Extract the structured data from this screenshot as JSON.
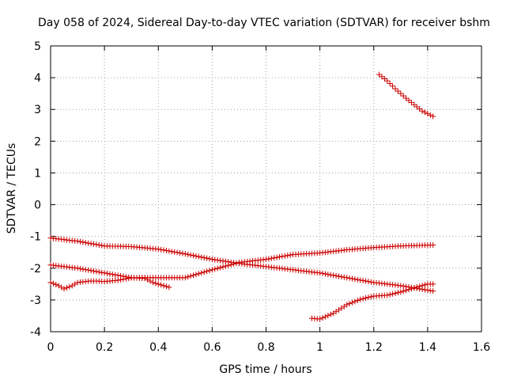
{
  "chart_data": {
    "type": "scatter",
    "title": "Day 058 of 2024, Sidereal Day-to-day VTEC variation (SDTVAR) for receiver bshm",
    "xlabel": "GPS time / hours",
    "ylabel": "SDTVAR / TECUs",
    "xlim": [
      0,
      1.6
    ],
    "ylim": [
      -4,
      5
    ],
    "xticks": [
      0,
      0.2,
      0.4,
      0.6,
      0.8,
      1,
      1.2,
      1.4,
      1.6
    ],
    "xtick_labels": [
      "0",
      "0.2",
      "0.4",
      "0.6",
      "0.8",
      "1",
      "1.2",
      "1.4",
      "1.6"
    ],
    "yticks": [
      -4,
      -3,
      -2,
      -1,
      0,
      1,
      2,
      3,
      4,
      5
    ],
    "ytick_labels": [
      "-4",
      "-3",
      "-2",
      "-1",
      "0",
      "1",
      "2",
      "3",
      "4",
      "5"
    ],
    "grid": true,
    "marker": "plus",
    "color": "#cc0000",
    "series": [
      {
        "x": [
          0,
          0.1,
          0.2,
          0.3,
          0.4,
          0.5,
          0.6,
          0.7,
          0.8,
          0.9,
          1.0,
          1.1,
          1.2,
          1.3,
          1.42
        ],
        "y": [
          -1.05,
          -1.15,
          -1.3,
          -1.32,
          -1.4,
          -1.55,
          -1.72,
          -1.85,
          -1.95,
          -2.05,
          -2.15,
          -2.3,
          -2.45,
          -2.55,
          -2.72
        ]
      },
      {
        "x": [
          0,
          0.1,
          0.2,
          0.3,
          0.4,
          0.5,
          0.6,
          0.7,
          0.8,
          0.9,
          1.0,
          1.1,
          1.2,
          1.3,
          1.42
        ],
        "y": [
          -1.9,
          -2.0,
          -2.15,
          -2.3,
          -2.3,
          -2.3,
          -2.05,
          -1.82,
          -1.72,
          -1.57,
          -1.52,
          -1.42,
          -1.35,
          -1.3,
          -1.27
        ]
      },
      {
        "x": [
          0,
          0.03,
          0.05,
          0.08,
          0.1,
          0.15,
          0.2,
          0.25,
          0.3,
          0.35,
          0.38,
          0.42,
          0.44
        ],
        "y": [
          -2.45,
          -2.55,
          -2.65,
          -2.55,
          -2.45,
          -2.4,
          -2.42,
          -2.38,
          -2.3,
          -2.32,
          -2.45,
          -2.55,
          -2.6
        ]
      },
      {
        "x": [
          0.97,
          1.0,
          1.05,
          1.1,
          1.15,
          1.2,
          1.25,
          1.3,
          1.35,
          1.4,
          1.42
        ],
        "y": [
          -3.58,
          -3.6,
          -3.42,
          -3.15,
          -2.98,
          -2.88,
          -2.85,
          -2.75,
          -2.62,
          -2.5,
          -2.5
        ]
      },
      {
        "x": [
          1.22,
          1.25,
          1.28,
          1.32,
          1.35,
          1.38,
          1.42
        ],
        "y": [
          4.1,
          3.9,
          3.65,
          3.35,
          3.15,
          2.95,
          2.78
        ]
      }
    ]
  }
}
